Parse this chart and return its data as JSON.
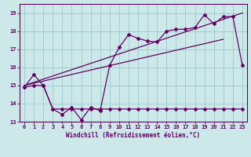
{
  "xlabel": "Windchill (Refroidissement éolien,°C)",
  "xlim": [
    -0.5,
    23.5
  ],
  "ylim": [
    13.0,
    19.5
  ],
  "yticks": [
    13,
    14,
    15,
    16,
    17,
    18,
    19
  ],
  "xticks": [
    0,
    1,
    2,
    3,
    4,
    5,
    6,
    7,
    8,
    9,
    10,
    11,
    12,
    13,
    14,
    15,
    16,
    17,
    18,
    19,
    20,
    21,
    22,
    23
  ],
  "bg_color": "#cce8e8",
  "grid_color": "#99cccc",
  "line_color": "#660066",
  "series1_x": [
    0,
    1,
    2,
    3,
    4,
    5,
    6,
    7,
    8,
    9,
    10,
    11,
    12,
    13,
    14,
    15,
    16,
    17,
    18,
    19,
    20,
    21,
    22,
    23
  ],
  "series1_y": [
    14.9,
    15.6,
    15.0,
    13.7,
    13.4,
    13.8,
    13.1,
    13.8,
    13.6,
    16.1,
    17.1,
    17.8,
    17.6,
    17.45,
    17.4,
    18.0,
    18.1,
    18.1,
    18.2,
    18.9,
    18.4,
    18.8,
    18.8,
    16.1
  ],
  "series2_x": [
    0,
    1,
    2,
    3,
    4,
    5,
    6,
    7,
    8,
    9,
    10,
    11,
    12,
    13,
    14,
    15,
    16,
    17,
    18,
    19,
    20,
    21,
    22,
    23
  ],
  "series2_y": [
    14.9,
    15.0,
    15.0,
    13.7,
    13.7,
    13.7,
    13.7,
    13.7,
    13.7,
    13.7,
    13.7,
    13.7,
    13.7,
    13.7,
    13.7,
    13.7,
    13.7,
    13.7,
    13.7,
    13.7,
    13.7,
    13.7,
    13.7,
    13.7
  ],
  "series3_x": [
    0,
    23
  ],
  "series3_y": [
    15.0,
    19.0
  ],
  "series4_x": [
    0,
    21
  ],
  "series4_y": [
    15.0,
    17.55
  ]
}
